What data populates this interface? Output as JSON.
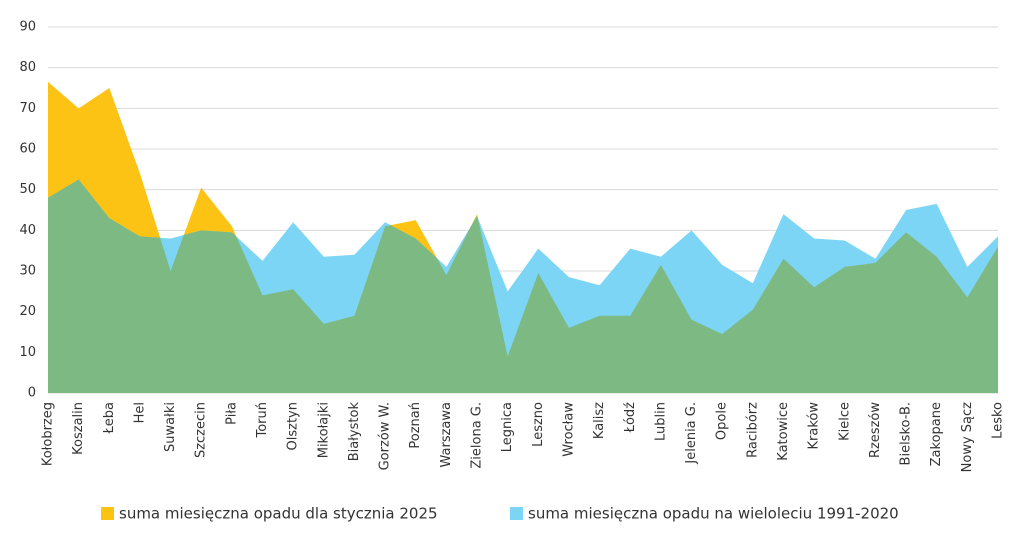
{
  "chart_data": {
    "type": "area",
    "categories": [
      "Kołobrzeg",
      "Koszalin",
      "Łeba",
      "Hel",
      "Suwałki",
      "Szczecin",
      "Piła",
      "Toruń",
      "Olsztyn",
      "Mikołajki",
      "Białystok",
      "Gorzów W.",
      "Poznań",
      "Warszawa",
      "Zielona G.",
      "Legnica",
      "Leszno",
      "Wrocław",
      "Kalisz",
      "Łódź",
      "Lublin",
      "Jelenia G.",
      "Opole",
      "Racibórz",
      "Katowice",
      "Kraków",
      "Kielce",
      "Rzeszów",
      "Bielsko-B.",
      "Zakopane",
      "Nowy Sącz",
      "Lesko"
    ],
    "series": [
      {
        "name": "suma miesięczna opadu dla stycznia 2025",
        "color": "#fdc314",
        "values": [
          76.5,
          70,
          75,
          54,
          30,
          50.5,
          41,
          24,
          25.5,
          17,
          19,
          41,
          42.5,
          29,
          44,
          9,
          29.5,
          16,
          19,
          19,
          31.5,
          18,
          14.5,
          20.5,
          33,
          26,
          31,
          32,
          39.5,
          33.5,
          23.5,
          36
        ]
      },
      {
        "name": "suma miesięczna opadu na wieloleciu 1991-2020",
        "color": "#7dd5f5",
        "values": [
          48,
          52.5,
          43,
          38.5,
          38,
          40,
          39.5,
          32.5,
          42,
          33.5,
          34,
          42,
          38,
          31,
          43.5,
          25,
          35.5,
          28.5,
          26.5,
          35.5,
          33.5,
          40,
          31.5,
          27,
          44,
          38,
          37.5,
          33,
          45,
          46.5,
          31,
          38.5
        ]
      }
    ],
    "overlap_color": "#7db982",
    "ylim": [
      0,
      90
    ],
    "yticks": [
      0,
      10,
      20,
      30,
      40,
      50,
      60,
      70,
      80,
      90
    ],
    "grid": true,
    "legend": "bottom"
  }
}
